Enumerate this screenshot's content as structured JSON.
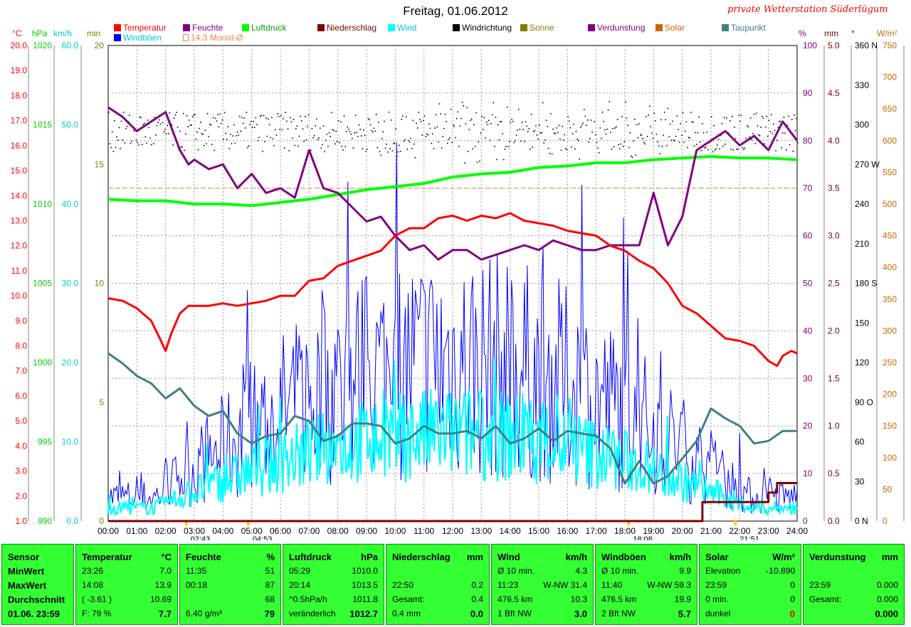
{
  "header": {
    "title": "Freitag, 01.06.2012",
    "brand": "private Wetterstation Süderlügum"
  },
  "legend": [
    {
      "label": "Temperatur",
      "color": "#ff0000",
      "text": "#ff0000"
    },
    {
      "label": "Feuchte",
      "color": "#800080",
      "text": "#800080"
    },
    {
      "label": "Luftdruck",
      "color": "#00ff00",
      "text": "#009900"
    },
    {
      "label": "Niederschlag",
      "color": "#800000",
      "text": "#800000"
    },
    {
      "label": "Wind",
      "color": "#00ffff",
      "text": "#00cccc"
    },
    {
      "label": "Windrichtung",
      "color": "#000000",
      "text": "#000000"
    },
    {
      "label": "Sonne",
      "color": "#808000",
      "text": "#808000"
    },
    {
      "label": "Verdunstung",
      "color": "#800080",
      "text": "#800080"
    },
    {
      "label": "Solar",
      "color": "#cc6600",
      "text": "#cc6600"
    },
    {
      "label": "Taupunkt",
      "color": "#408080",
      "text": "#408080"
    },
    {
      "label": "Windböen",
      "color": "#0000ff",
      "text": "#00cccc"
    },
    {
      "label": "14.3 Monat-Ø",
      "color": "#ff8040",
      "text": "#ff8040"
    }
  ],
  "axis_units": {
    "temp": "°C",
    "pressure": "hPa",
    "wind": "km/h",
    "sun": "min",
    "humidity": "%",
    "rain": "mm",
    "direction": "°",
    "solar": "W/m²"
  },
  "axis_ticks": {
    "temp": [
      "20.0",
      "19.0",
      "18.0",
      "17.0",
      "16.0",
      "15.0",
      "14.0",
      "13.0",
      "12.0",
      "11.0",
      "10.0",
      "9.0",
      "8.0",
      "7.0",
      "6.0",
      "5.0",
      "4.0",
      "3.0",
      "2.0",
      "1.0"
    ],
    "pressure": [
      "1020",
      "1015",
      "1010",
      "1005",
      "1000",
      "995",
      "990"
    ],
    "wind": [
      "60.0",
      "50.0",
      "40.0",
      "30.0",
      "20.0",
      "10.0",
      "0.0"
    ],
    "sun": [
      "20",
      "15",
      "10",
      "5",
      "0"
    ],
    "humidity": [
      "100",
      "90",
      "80",
      "70",
      "60",
      "50",
      "40",
      "30",
      "20",
      "10",
      "0"
    ],
    "rain": [
      "5.0",
      "4.5",
      "4.0",
      "3.5",
      "3.0",
      "2.5",
      "2.0",
      "1.5",
      "1.0",
      "0.5",
      "0.0"
    ],
    "direction": [
      "360 N",
      "330",
      "300",
      "270 W",
      "240",
      "210",
      "180 S",
      "150",
      "120",
      "90 O",
      "60",
      "30",
      "0   N"
    ],
    "solar": [
      "750",
      "700",
      "650",
      "600",
      "550",
      "500",
      "450",
      "400",
      "350",
      "300",
      "250",
      "200",
      "150",
      "100",
      "50",
      "0"
    ]
  },
  "time_labels": [
    "00:00",
    "01:00",
    "02:00",
    "03:00",
    "04:00",
    "05:00",
    "06:00",
    "07:00",
    "08:00",
    "09:00",
    "10:00",
    "11:00",
    "12:00",
    "13:00",
    "14:00",
    "15:00",
    "16:00",
    "17:00",
    "18:00",
    "19:00",
    "20:00",
    "21:00",
    "22:00",
    "23:00",
    "24:00"
  ],
  "event_labels": [
    {
      "text": "02:43",
      "hour": 2.72
    },
    {
      "text": "04:53",
      "hour": 4.88
    },
    {
      "text": "18:08",
      "hour": 18.13
    },
    {
      "text": "21:51",
      "hour": 21.85
    }
  ],
  "chart_data": {
    "type": "line",
    "x_unit": "hours (00:00–24:00)",
    "monthly_avg_temp": 14.3,
    "series": [
      {
        "name": "Temperatur",
        "axis": "temp",
        "x": [
          0,
          0.5,
          1,
          1.5,
          1.8,
          2,
          2.2,
          2.5,
          2.8,
          3,
          3.5,
          4,
          4.5,
          5,
          5.5,
          6,
          6.5,
          7,
          7.5,
          8,
          8.5,
          9,
          9.5,
          10,
          10.5,
          11,
          11.5,
          12,
          12.5,
          13,
          13.5,
          14,
          14.5,
          15,
          15.5,
          16,
          16.5,
          17,
          17.5,
          18,
          18.5,
          19,
          19.5,
          20,
          20.5,
          21,
          21.5,
          22,
          22.5,
          23,
          23.3,
          23.5,
          23.8,
          24
        ],
        "y": [
          9.9,
          9.8,
          9.5,
          9.0,
          8.3,
          7.8,
          8.5,
          9.3,
          9.6,
          9.6,
          9.6,
          9.7,
          9.6,
          9.7,
          9.8,
          10.0,
          10.0,
          10.6,
          10.7,
          11.2,
          11.4,
          11.6,
          11.8,
          12.4,
          12.7,
          12.7,
          13.1,
          13.2,
          13.0,
          13.2,
          13.1,
          13.3,
          13.0,
          12.9,
          12.8,
          12.6,
          12.5,
          12.4,
          12.0,
          11.8,
          11.4,
          11.1,
          10.5,
          9.6,
          9.3,
          8.8,
          8.3,
          8.2,
          8.0,
          7.4,
          7.2,
          7.6,
          7.8,
          7.7
        ]
      },
      {
        "name": "Feuchte",
        "axis": "humidity",
        "x": [
          0,
          0.5,
          1,
          1.5,
          2,
          2.5,
          2.8,
          3,
          3.5,
          4,
          4.5,
          5,
          5.5,
          6,
          6.5,
          7,
          7.5,
          8,
          8.5,
          9,
          9.5,
          10,
          10.5,
          11,
          11.5,
          12,
          12.5,
          13,
          13.5,
          14,
          14.5,
          15,
          15.5,
          16,
          16.5,
          17,
          17.5,
          18,
          18.5,
          19,
          19.5,
          20,
          20.5,
          21,
          21.5,
          22,
          22.5,
          23,
          23.5,
          24
        ],
        "y": [
          87,
          85,
          82,
          84,
          86,
          78,
          75,
          76,
          74,
          75,
          70,
          73,
          69,
          70,
          68,
          78,
          70,
          69,
          66,
          63,
          64,
          60,
          57,
          58,
          55,
          57,
          57,
          55,
          56,
          57,
          58,
          57,
          59,
          58,
          57,
          57,
          58,
          58,
          58,
          69,
          58,
          64,
          78,
          80,
          82,
          79,
          81,
          78,
          84,
          80
        ]
      },
      {
        "name": "Luftdruck",
        "axis": "pressure",
        "x": [
          0,
          1,
          2,
          3,
          4,
          5,
          6,
          7,
          8,
          9,
          10,
          11,
          12,
          13,
          14,
          15,
          16,
          17,
          18,
          19,
          20,
          21,
          22,
          23,
          24
        ],
        "y": [
          1010.3,
          1010.2,
          1010.2,
          1010.0,
          1010.0,
          1009.9,
          1010.1,
          1010.3,
          1010.6,
          1010.9,
          1011.1,
          1011.3,
          1011.7,
          1011.9,
          1012.0,
          1012.3,
          1012.4,
          1012.6,
          1012.6,
          1012.8,
          1012.9,
          1013.0,
          1012.9,
          1012.9,
          1012.8
        ]
      },
      {
        "name": "Taupunkt",
        "axis": "temp",
        "x": [
          0,
          0.5,
          1,
          1.5,
          2,
          2.5,
          3,
          3.5,
          4,
          4.5,
          5,
          5.5,
          6,
          6.5,
          7,
          7.5,
          8,
          8.5,
          9,
          9.5,
          10,
          10.5,
          11,
          11.5,
          12,
          12.5,
          13,
          13.5,
          14,
          14.5,
          15,
          15.5,
          16,
          16.5,
          17,
          17.5,
          18,
          18.5,
          19,
          19.5,
          20,
          20.5,
          21,
          21.5,
          22,
          22.5,
          23,
          23.5,
          24
        ],
        "y": [
          7.7,
          7.3,
          6.8,
          6.5,
          5.9,
          6.3,
          5.6,
          5.2,
          5.4,
          4.5,
          4.1,
          4.4,
          4.5,
          5.2,
          5.0,
          4.2,
          4.4,
          4.9,
          4.9,
          4.8,
          4.1,
          4.3,
          4.8,
          4.5,
          4.5,
          4.6,
          4.3,
          4.8,
          4.1,
          4.3,
          4.7,
          4.2,
          4.6,
          4.5,
          4.4,
          3.9,
          2.5,
          3.4,
          2.5,
          2.8,
          3.5,
          4.2,
          5.5,
          5.1,
          4.8,
          4.1,
          4.2,
          4.6,
          4.6
        ]
      },
      {
        "name": "Niederschlag",
        "axis": "rain",
        "x": [
          0,
          20.7,
          20.7,
          23.0,
          23.0,
          23.3,
          23.3,
          24
        ],
        "y": [
          0,
          0,
          0.2,
          0.2,
          0.3,
          0.3,
          0.4,
          0.4
        ]
      },
      {
        "name": "Wind",
        "axis": "wind",
        "summary": "Ø 10.3 km/h, Ø10min max 31.4 km/h"
      },
      {
        "name": "Windböen",
        "axis": "wind",
        "summary": "Ø 19.9 km/h, max 59.3 km/h"
      },
      {
        "name": "Windrichtung",
        "axis": "direction",
        "summary": "mostly W-NW, 280–310°"
      }
    ],
    "ylim": {
      "temp": [
        1,
        20
      ],
      "humidity": [
        0,
        100
      ],
      "pressure": [
        990,
        1020
      ],
      "wind": [
        0,
        60
      ],
      "sun": [
        0,
        20
      ],
      "rain": [
        0,
        5
      ],
      "direction": [
        0,
        360
      ],
      "solar": [
        0,
        750
      ]
    },
    "grid": true
  },
  "stats": {
    "sensor": {
      "title": "Sensor",
      "rows": [
        "MinWert",
        "MaxWert",
        "Durchschnitt",
        "01.06. 23:59"
      ]
    },
    "temperature": {
      "title": "Temperatur",
      "unit": "°C",
      "rows": [
        [
          "23:26",
          "7.0"
        ],
        [
          "14:08",
          "13.9"
        ],
        [
          "( -3.61 )",
          "10.69"
        ],
        [
          "F: 79 %",
          "7.7"
        ]
      ]
    },
    "humidity": {
      "title": "Feuchte",
      "unit": "%",
      "rows": [
        [
          "11:35",
          "51"
        ],
        [
          "00:18",
          "87"
        ],
        [
          "",
          "68"
        ],
        [
          "6.40 g/m³",
          "79"
        ]
      ]
    },
    "pressure": {
      "title": "Luftdruck",
      "unit": "hPa",
      "rows": [
        [
          "05:29",
          "1010.0"
        ],
        [
          "20:14",
          "1013.5"
        ],
        [
          "^0.5hPa/h",
          "1011.8"
        ],
        [
          "veränderlich",
          "1012.7"
        ]
      ]
    },
    "rain": {
      "title": "Niederschlag",
      "unit": "mm",
      "rows": [
        [
          "",
          ""
        ],
        [
          "22:50",
          "0.2"
        ],
        [
          "Gesamt:",
          "0.4"
        ],
        [
          "0.4 mm",
          "0.0"
        ]
      ]
    },
    "wind": {
      "title": "Wind",
      "unit": "km/h",
      "rows": [
        [
          "Ø 10 min.",
          "4.3"
        ],
        [
          "11:23",
          "W-NW 31.4"
        ],
        [
          "476.5 km",
          "10.3"
        ],
        [
          "1 Bft NW",
          "3.0"
        ]
      ]
    },
    "gusts": {
      "title": "Windböen",
      "unit": "km/h",
      "rows": [
        [
          "Ø 10 min.",
          "9.9"
        ],
        [
          "11:40",
          "W-NW 59.3"
        ],
        [
          "476.5 km",
          "19.9"
        ],
        [
          "2 Bft NW",
          "5.7"
        ]
      ]
    },
    "solar": {
      "title": "Solar",
      "unit": "W/m²",
      "rows": [
        [
          "Elevation",
          "-10.890"
        ],
        [
          "23:59",
          "0"
        ],
        [
          "0 min.",
          "0"
        ],
        [
          "dunkel",
          "0"
        ]
      ]
    },
    "evaporation": {
      "title": "Verdunstung",
      "unit": "mm",
      "rows": [
        [
          "",
          ""
        ],
        [
          "23:59",
          "0.000"
        ],
        [
          "Gesamt:",
          "0.000"
        ],
        [
          "",
          "0.000"
        ]
      ]
    }
  }
}
